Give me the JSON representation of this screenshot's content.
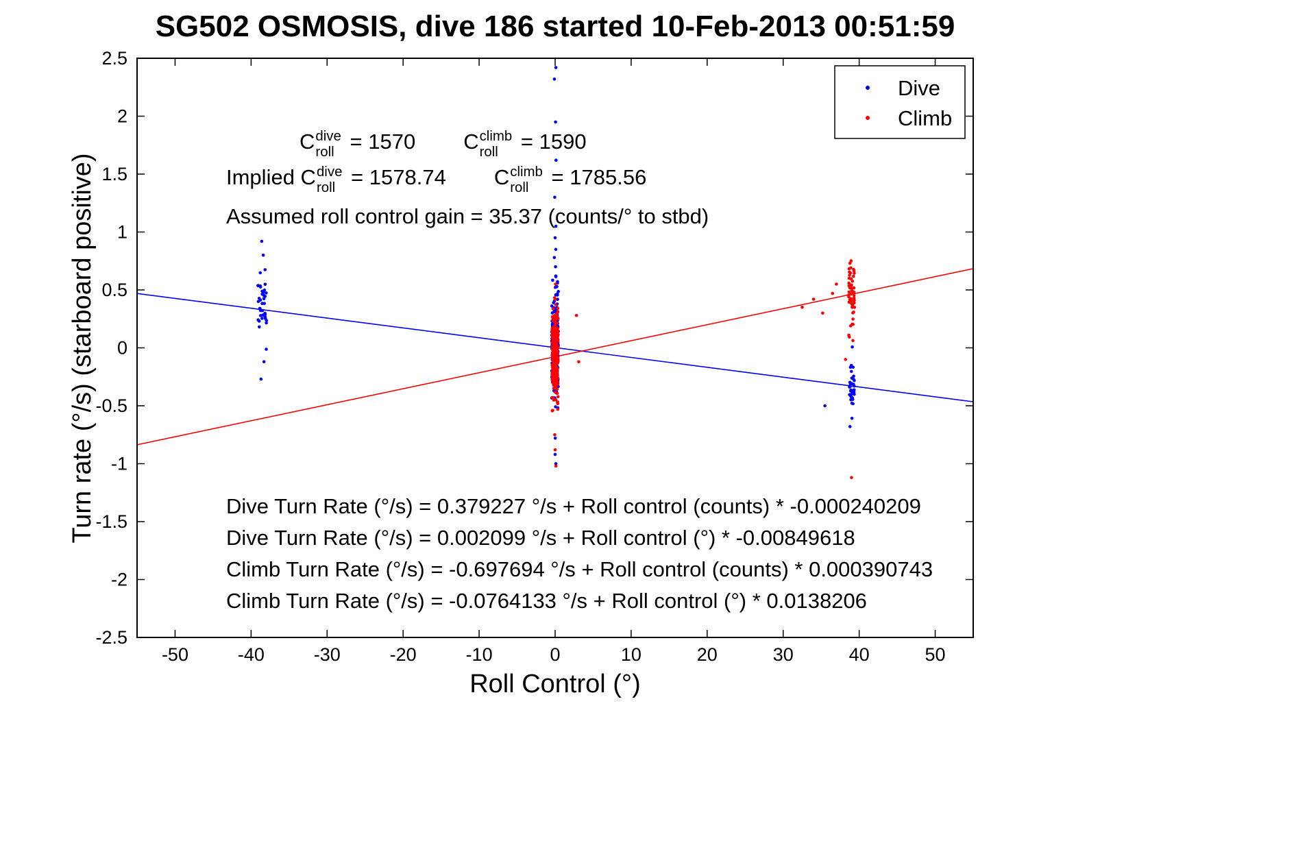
{
  "chart_data": {
    "type": "scatter",
    "title": "SG502 OSMOSIS, dive 186 started 10-Feb-2013 00:51:59",
    "xlabel": "Roll Control (°)",
    "ylabel": "Turn rate (°/s) (starboard positive)",
    "xlim": [
      -55,
      55
    ],
    "ylim": [
      -2.5,
      2.5
    ],
    "xticks": [
      -50,
      -40,
      -30,
      -20,
      -10,
      0,
      10,
      20,
      30,
      40,
      50
    ],
    "yticks": [
      -2.5,
      -2,
      -1.5,
      -1,
      -0.5,
      0,
      0.5,
      1,
      1.5,
      2,
      2.5
    ],
    "grid": false,
    "legend": {
      "position": "top-right",
      "entries": [
        {
          "label": "Dive",
          "color": "#0000ff"
        },
        {
          "label": "Climb",
          "color": "#ff0000"
        }
      ]
    },
    "values": {
      "c_roll_dive": 1570,
      "c_roll_climb": 1590,
      "implied_c_roll_dive": 1578.74,
      "implied_c_roll_climb": 1785.56,
      "roll_control_gain_counts_per_deg": 35.37
    },
    "series": [
      {
        "name": "Dive",
        "color": "#0000ff",
        "marker": "dot",
        "clusters": [
          {
            "cx": -38.5,
            "x_spread": 1.2,
            "y_mean": 0.38,
            "y_sd": 0.16,
            "y_min": -0.27,
            "y_max": 0.8,
            "n": 40
          },
          {
            "cx": 0,
            "x_spread": 0.9,
            "y_mean": 0.03,
            "y_sd": 0.22,
            "y_min": -0.7,
            "y_max": 0.62,
            "n": 260
          },
          {
            "cx": 39,
            "x_spread": 0.7,
            "y_mean": -0.35,
            "y_sd": 0.13,
            "y_min": -0.63,
            "y_max": 0.12,
            "n": 36
          }
        ],
        "outliers": [
          [
            -38.6,
            0.92
          ],
          [
            -38.4,
            0.8
          ],
          [
            -38.3,
            -0.12
          ],
          [
            -38.7,
            -0.27
          ],
          [
            0.1,
            2.42
          ],
          [
            -0.1,
            2.32
          ],
          [
            0.05,
            1.95
          ],
          [
            0.12,
            1.62
          ],
          [
            -0.05,
            1.3
          ],
          [
            0.1,
            1.05
          ],
          [
            0,
            0.95
          ],
          [
            0.08,
            0.85
          ],
          [
            -0.1,
            0.78
          ],
          [
            0.05,
            0.7
          ],
          [
            0.02,
            -0.78
          ],
          [
            0,
            -0.92
          ],
          [
            0.1,
            -1.0
          ],
          [
            35.5,
            -0.5
          ],
          [
            38.8,
            -0.68
          ]
        ]
      },
      {
        "name": "Climb",
        "color": "#ff0000",
        "marker": "dot",
        "clusters": [
          {
            "cx": 0,
            "x_spread": 0.8,
            "y_mean": -0.08,
            "y_sd": 0.18,
            "y_min": -0.62,
            "y_max": 0.45,
            "n": 300
          },
          {
            "cx": 39,
            "x_spread": 0.8,
            "y_mean": 0.45,
            "y_sd": 0.17,
            "y_min": -0.25,
            "y_max": 0.77,
            "n": 52
          }
        ],
        "outliers": [
          [
            0.05,
            0.55
          ],
          [
            -0.05,
            -0.75
          ],
          [
            0,
            -0.88
          ],
          [
            0.1,
            -1.02
          ],
          [
            2.8,
            0.28
          ],
          [
            3.1,
            -0.12
          ],
          [
            39,
            -1.12
          ],
          [
            32.5,
            0.35
          ],
          [
            34,
            0.42
          ],
          [
            35.2,
            0.3
          ],
          [
            36.5,
            0.47
          ],
          [
            37,
            0.55
          ],
          [
            38.2,
            -0.1
          ]
        ]
      }
    ],
    "fit_lines": [
      {
        "series": "Dive",
        "color": "#0000ff",
        "intercept": 0.002099,
        "slope": -0.00849618
      },
      {
        "series": "Climb",
        "color": "#ff0000",
        "intercept": -0.0764133,
        "slope": 0.0138206
      }
    ],
    "annotations": {
      "current": {
        "c1": {
          "base": "C",
          "sup": "dive",
          "sub": "roll",
          "rest": " = 1570"
        },
        "c2": {
          "base": "C",
          "sup": "climb",
          "sub": "roll",
          "rest": " = 1590"
        }
      },
      "implied": {
        "prefix": "Implied ",
        "c1": {
          "base": "C",
          "sup": "dive",
          "sub": "roll",
          "rest": " = 1578.74"
        },
        "c2": {
          "base": "C",
          "sup": "climb",
          "sub": "roll",
          "rest": " = 1785.56"
        }
      },
      "gain": "Assumed roll control gain = 35.37 (counts/° to stbd)",
      "fits": [
        "Dive Turn Rate (°/s) = 0.379227 °/s + Roll control (counts) * -0.000240209",
        "Dive Turn Rate (°/s) = 0.002099 °/s + Roll control (°) * -0.00849618",
        "Climb Turn Rate (°/s) = -0.697694 °/s + Roll control (counts) * 0.000390743",
        "Climb Turn Rate (°/s) = -0.0764133 °/s + Roll control (°) * 0.0138206"
      ]
    }
  }
}
